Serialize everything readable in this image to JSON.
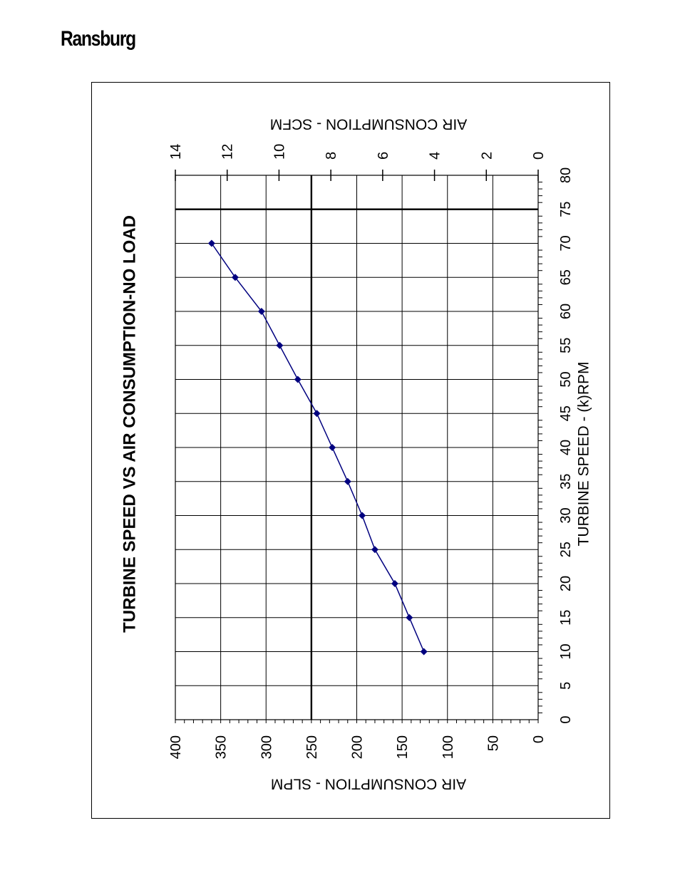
{
  "header": {
    "brand": "Ransburg"
  },
  "chart_data": {
    "type": "line",
    "title": "TURBINE SPEED VS AIR CONSUMPTION-NO LOAD",
    "xlabel": "TURBINE SPEED -  (k)RPM",
    "ylabel": "AIR CONSUMPTION - SLPM",
    "y2label": "AIR CONSUMPTION - SCFM",
    "xlim": [
      0,
      80
    ],
    "ylim": [
      0,
      400
    ],
    "y2lim": [
      0,
      14
    ],
    "x_ticks": [
      "0",
      "5",
      "10",
      "15",
      "20",
      "25",
      "30",
      "35",
      "40",
      "45",
      "50",
      "55",
      "60",
      "65",
      "70",
      "75",
      "80"
    ],
    "y_ticks": [
      "0",
      "50",
      "100",
      "150",
      "200",
      "250",
      "300",
      "350",
      "400"
    ],
    "y2_ticks": [
      "0",
      "2",
      "4",
      "6",
      "8",
      "10",
      "12",
      "14"
    ],
    "grid": true,
    "rotation": "page rotated 90 degrees counter-clockwise",
    "series": [
      {
        "color": "#00007f",
        "marker": "diamond",
        "x": [
          10,
          15,
          20,
          25,
          30,
          35,
          40,
          45,
          50,
          55,
          60,
          65,
          70
        ],
        "y": [
          126,
          142,
          158,
          180,
          194,
          210,
          227,
          244,
          265,
          285,
          305,
          334,
          360
        ]
      }
    ],
    "reference_lines": {
      "y": 250,
      "x": 75
    }
  }
}
